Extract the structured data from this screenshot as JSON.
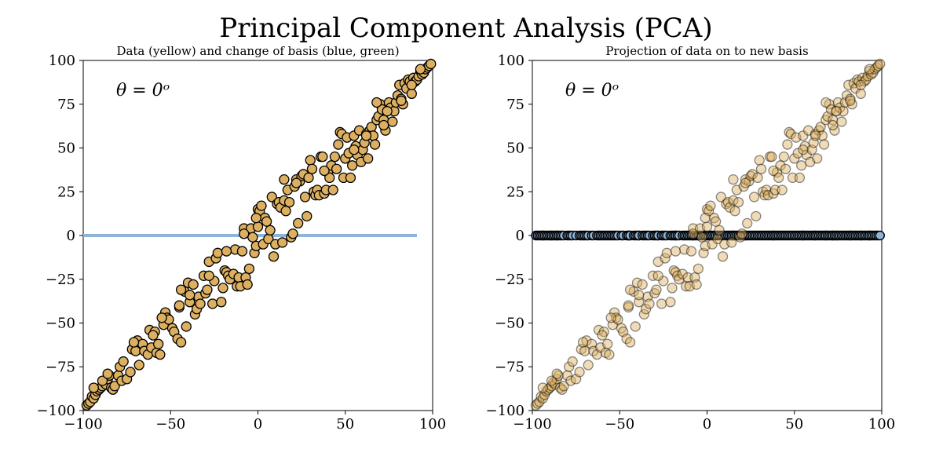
{
  "title": "Principal Component Analysis (PCA)",
  "colors": {
    "data_fill": "#dcb060",
    "data_edge": "#000000",
    "basis_blue": "#8fb3d9",
    "proj_fill": "#8fb3d9"
  },
  "chart_data": [
    {
      "type": "scatter",
      "title": "Data (yellow) and change of basis (blue, green)",
      "annotation": "θ =  0ᵒ",
      "xlim": [
        -100,
        100
      ],
      "ylim": [
        -100,
        100
      ],
      "xticks": [
        "−100",
        "−50",
        "0",
        "50",
        "100"
      ],
      "yticks": [
        "100",
        "75",
        "50",
        "25",
        "0",
        "−25",
        "−50",
        "−75",
        "−100"
      ],
      "basis_line": {
        "x": [
          -100,
          91
        ],
        "y": [
          0,
          0
        ]
      },
      "marker_alpha": 1.0
    },
    {
      "type": "scatter",
      "title": "Projection of data on to new basis",
      "annotation": "θ =  0ᵒ",
      "xlim": [
        -100,
        100
      ],
      "ylim": [
        -100,
        100
      ],
      "xticks": [
        "−100",
        "−50",
        "0",
        "50",
        "100"
      ],
      "yticks": [
        "100",
        "75",
        "50",
        "25",
        "0",
        "−25",
        "−50",
        "−75",
        "−100"
      ],
      "marker_alpha": 0.45,
      "projection_y": 0
    }
  ],
  "points": [
    [
      -98,
      -97
    ],
    [
      -97,
      -96
    ],
    [
      -96,
      -95
    ],
    [
      -95,
      -92
    ],
    [
      -94,
      -93
    ],
    [
      -93,
      -91
    ],
    [
      -92,
      -89
    ],
    [
      -91,
      -88
    ],
    [
      -90,
      -87
    ],
    [
      -89,
      -86
    ],
    [
      -88,
      -84
    ],
    [
      -87,
      -85
    ],
    [
      -86,
      -82
    ],
    [
      -85,
      -80
    ],
    [
      -84,
      -87
    ],
    [
      -83,
      -88
    ],
    [
      -82,
      -86
    ],
    [
      -80,
      -80
    ],
    [
      -79,
      -75
    ],
    [
      -78,
      -83
    ],
    [
      -77,
      -72
    ],
    [
      -75,
      -82
    ],
    [
      -73,
      -78
    ],
    [
      -72,
      -65
    ],
    [
      -70,
      -66
    ],
    [
      -69,
      -60
    ],
    [
      -68,
      -74
    ],
    [
      -66,
      -62
    ],
    [
      -65,
      -66
    ],
    [
      -63,
      -68
    ],
    [
      -62,
      -54
    ],
    [
      -61,
      -64
    ],
    [
      -59,
      -55
    ],
    [
      -58,
      -67
    ],
    [
      -57,
      -62
    ],
    [
      -56,
      -68
    ],
    [
      -54,
      -51
    ],
    [
      -53,
      -44
    ],
    [
      -52,
      -47
    ],
    [
      -51,
      -48
    ],
    [
      -49,
      -53
    ],
    [
      -48,
      -55
    ],
    [
      -46,
      -59
    ],
    [
      -45,
      -41
    ],
    [
      -44,
      -61
    ],
    [
      -42,
      -32
    ],
    [
      -41,
      -52
    ],
    [
      -40,
      -27
    ],
    [
      -39,
      -38
    ],
    [
      -37,
      -28
    ],
    [
      -36,
      -45
    ],
    [
      -35,
      -42
    ],
    [
      -34,
      -35
    ],
    [
      -33,
      -39
    ],
    [
      -31,
      -23
    ],
    [
      -30,
      -33
    ],
    [
      -29,
      -31
    ],
    [
      -28,
      -15
    ],
    [
      -26,
      -39
    ],
    [
      -25,
      -26
    ],
    [
      -24,
      -13
    ],
    [
      -23,
      -10
    ],
    [
      -21,
      -38
    ],
    [
      -20,
      -30
    ],
    [
      -19,
      -20
    ],
    [
      -18,
      -21
    ],
    [
      -17,
      -23
    ],
    [
      -16,
      -25
    ],
    [
      -14,
      -22
    ],
    [
      -13,
      -8
    ],
    [
      -12,
      -29
    ],
    [
      -11,
      -24
    ],
    [
      -10,
      -29
    ],
    [
      -9,
      -9
    ],
    [
      -8,
      4
    ],
    [
      -7,
      -24
    ],
    [
      -6,
      -28
    ],
    [
      -5,
      -19
    ],
    [
      -4,
      4
    ],
    [
      -3,
      -1
    ],
    [
      -2,
      -10
    ],
    [
      -1,
      -6
    ],
    [
      0,
      15
    ],
    [
      1,
      14
    ],
    [
      2,
      17
    ],
    [
      3,
      -5
    ],
    [
      4,
      10
    ],
    [
      5,
      8
    ],
    [
      6,
      -2
    ],
    [
      7,
      3
    ],
    [
      8,
      22
    ],
    [
      9,
      -12
    ],
    [
      10,
      -5
    ],
    [
      11,
      18
    ],
    [
      12,
      19
    ],
    [
      13,
      16
    ],
    [
      14,
      -4
    ],
    [
      15,
      20
    ],
    [
      16,
      14
    ],
    [
      17,
      26
    ],
    [
      18,
      19
    ],
    [
      19,
      -1
    ],
    [
      20,
      1
    ],
    [
      21,
      28
    ],
    [
      22,
      32
    ],
    [
      23,
      7
    ],
    [
      24,
      31
    ],
    [
      25,
      34
    ],
    [
      26,
      35
    ],
    [
      27,
      22
    ],
    [
      28,
      11
    ],
    [
      29,
      33
    ],
    [
      30,
      43
    ],
    [
      31,
      38
    ],
    [
      32,
      25
    ],
    [
      33,
      23
    ],
    [
      34,
      26
    ],
    [
      35,
      23
    ],
    [
      36,
      45
    ],
    [
      37,
      45
    ],
    [
      38,
      24
    ],
    [
      39,
      26
    ],
    [
      40,
      36
    ],
    [
      41,
      33
    ],
    [
      42,
      40
    ],
    [
      43,
      26
    ],
    [
      44,
      45
    ],
    [
      45,
      38
    ],
    [
      46,
      52
    ],
    [
      47,
      59
    ],
    [
      48,
      58
    ],
    [
      49,
      33
    ],
    [
      50,
      44
    ],
    [
      51,
      56
    ],
    [
      52,
      47
    ],
    [
      53,
      33
    ],
    [
      54,
      40
    ],
    [
      55,
      57
    ],
    [
      56,
      51
    ],
    [
      57,
      46
    ],
    [
      58,
      60
    ],
    [
      59,
      42
    ],
    [
      60,
      49
    ],
    [
      61,
      53
    ],
    [
      62,
      58
    ],
    [
      63,
      44
    ],
    [
      64,
      60
    ],
    [
      65,
      62
    ],
    [
      66,
      57
    ],
    [
      67,
      52
    ],
    [
      68,
      66
    ],
    [
      69,
      68
    ],
    [
      70,
      75
    ],
    [
      71,
      72
    ],
    [
      72,
      66
    ],
    [
      73,
      60
    ],
    [
      74,
      71
    ],
    [
      75,
      76
    ],
    [
      76,
      73
    ],
    [
      77,
      65
    ],
    [
      78,
      71
    ],
    [
      79,
      76
    ],
    [
      80,
      80
    ],
    [
      81,
      86
    ],
    [
      82,
      78
    ],
    [
      83,
      75
    ],
    [
      84,
      87
    ],
    [
      85,
      84
    ],
    [
      86,
      89
    ],
    [
      87,
      88
    ],
    [
      88,
      81
    ],
    [
      89,
      90
    ],
    [
      90,
      88
    ],
    [
      91,
      89
    ],
    [
      92,
      91
    ],
    [
      93,
      94
    ],
    [
      94,
      92
    ],
    [
      95,
      93
    ],
    [
      96,
      95
    ],
    [
      97,
      96
    ],
    [
      98,
      97
    ],
    [
      99,
      98
    ],
    [
      -94,
      -87
    ],
    [
      -89,
      -83
    ],
    [
      -86,
      -79
    ],
    [
      -44,
      -31
    ],
    [
      -18,
      -9
    ],
    [
      -45,
      -40
    ],
    [
      -55,
      -47
    ],
    [
      -71,
      -61
    ],
    [
      -60,
      -57
    ],
    [
      -28,
      -23
    ],
    [
      -8,
      1
    ],
    [
      0,
      5
    ],
    [
      22,
      30
    ],
    [
      38,
      37
    ],
    [
      55,
      49
    ],
    [
      62,
      57
    ],
    [
      72,
      63
    ],
    [
      82,
      77
    ],
    [
      88,
      86
    ],
    [
      93,
      95
    ],
    [
      -1,
      10
    ],
    [
      -39,
      -34
    ],
    [
      15,
      32
    ],
    [
      68,
      76
    ],
    [
      74,
      71
    ]
  ]
}
